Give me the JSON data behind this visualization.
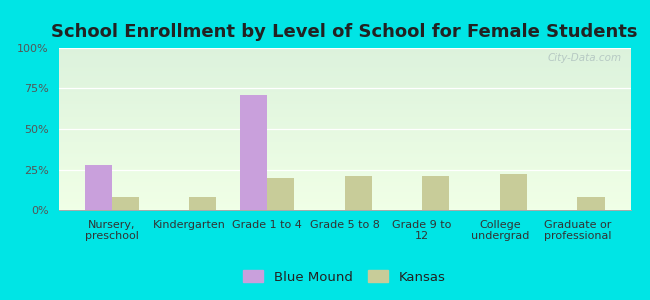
{
  "title": "School Enrollment by Level of School for Female Students",
  "categories": [
    "Nursery,\npreschool",
    "Kindergarten",
    "Grade 1 to 4",
    "Grade 5 to 8",
    "Grade 9 to\n12",
    "College\nundergrad",
    "Graduate or\nprofessional"
  ],
  "blue_mound": [
    28,
    0,
    71,
    0,
    0,
    0,
    0
  ],
  "kansas": [
    8,
    8,
    20,
    21,
    21,
    22,
    8
  ],
  "bar_color_bm": "#c9a0dc",
  "bar_color_ks": "#c8cc99",
  "outer_bg": "#00e5e5",
  "ylim": [
    0,
    100
  ],
  "yticks": [
    0,
    25,
    50,
    75,
    100
  ],
  "ytick_labels": [
    "0%",
    "25%",
    "50%",
    "75%",
    "100%"
  ],
  "legend_labels": [
    "Blue Mound",
    "Kansas"
  ],
  "bar_width": 0.35,
  "title_fontsize": 13,
  "tick_fontsize": 8,
  "legend_fontsize": 9.5
}
